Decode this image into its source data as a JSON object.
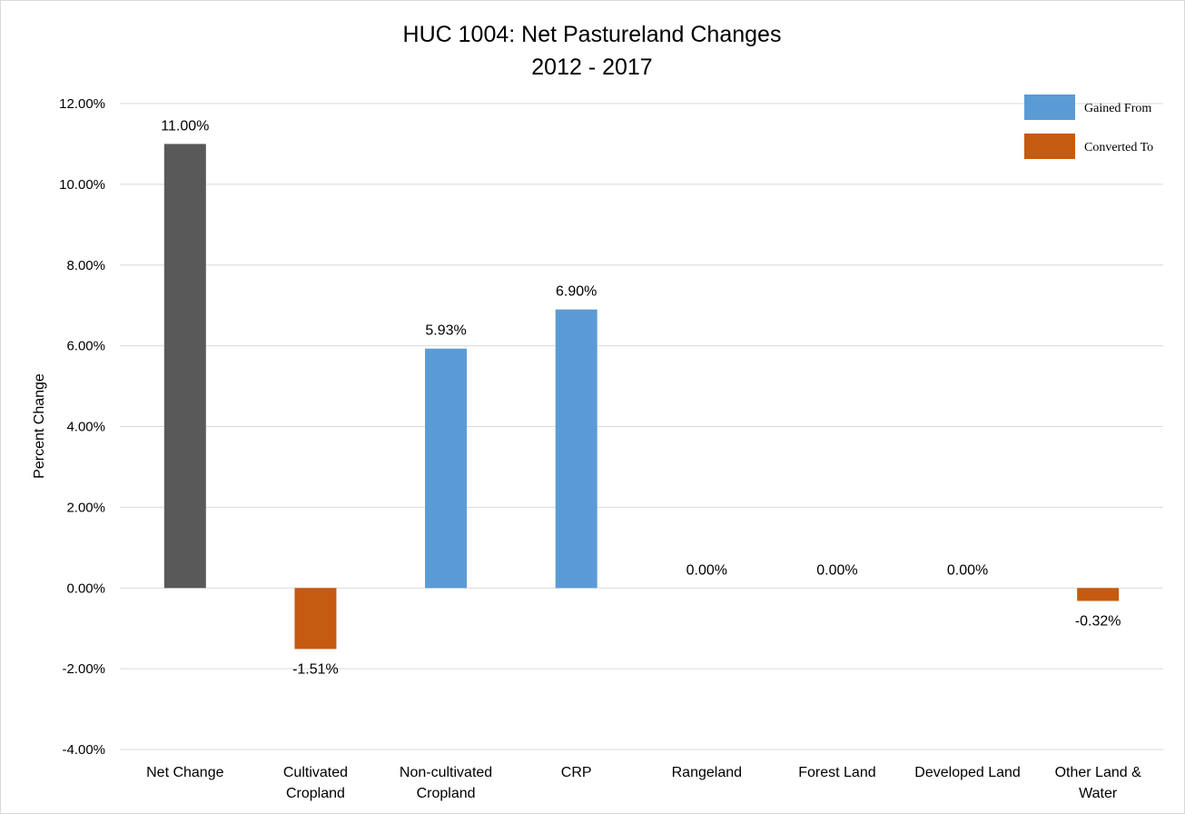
{
  "chart_data": {
    "type": "bar",
    "title": "HUC 1004: Net Pastureland Changes",
    "subtitle": "2012 - 2017",
    "ylabel": "Percent Change",
    "xlabel": "",
    "ylim": [
      -4,
      12
    ],
    "yticks": [
      {
        "value": 12,
        "label": "12.00%"
      },
      {
        "value": 10,
        "label": "10.00%"
      },
      {
        "value": 8,
        "label": "8.00%"
      },
      {
        "value": 6,
        "label": "6.00%"
      },
      {
        "value": 4,
        "label": "4.00%"
      },
      {
        "value": 2,
        "label": "2.00%"
      },
      {
        "value": 0,
        "label": "0.00%"
      },
      {
        "value": -2,
        "label": "-2.00%"
      },
      {
        "value": -4,
        "label": "-4.00%"
      }
    ],
    "grid": true,
    "legend_position": "top-right",
    "legend": [
      {
        "name": "Gained From",
        "color": "#5b9bd5"
      },
      {
        "name": "Converted To",
        "color": "#c55a11"
      }
    ],
    "categories": [
      [
        "Net Change"
      ],
      [
        "Cultivated",
        "Cropland"
      ],
      [
        "Non-cultivated",
        "Cropland"
      ],
      [
        "CRP"
      ],
      [
        "Rangeland"
      ],
      [
        "Forest Land"
      ],
      [
        "Developed Land"
      ],
      [
        "Other Land &",
        "Water"
      ]
    ],
    "values": [
      11.0,
      -1.51,
      5.93,
      6.9,
      0.0,
      0.0,
      0.0,
      -0.32
    ],
    "data_labels": [
      "11.00%",
      "-1.51%",
      "5.93%",
      "6.90%",
      "0.00%",
      "0.00%",
      "0.00%",
      "-0.32%"
    ],
    "bar_colors": [
      "#595959",
      "#c55a11",
      "#5b9bd5",
      "#5b9bd5",
      "#5b9bd5",
      "#5b9bd5",
      "#5b9bd5",
      "#c55a11"
    ],
    "gridline_color": "#d9d9d9",
    "axis_color": "#d9d9d9"
  }
}
